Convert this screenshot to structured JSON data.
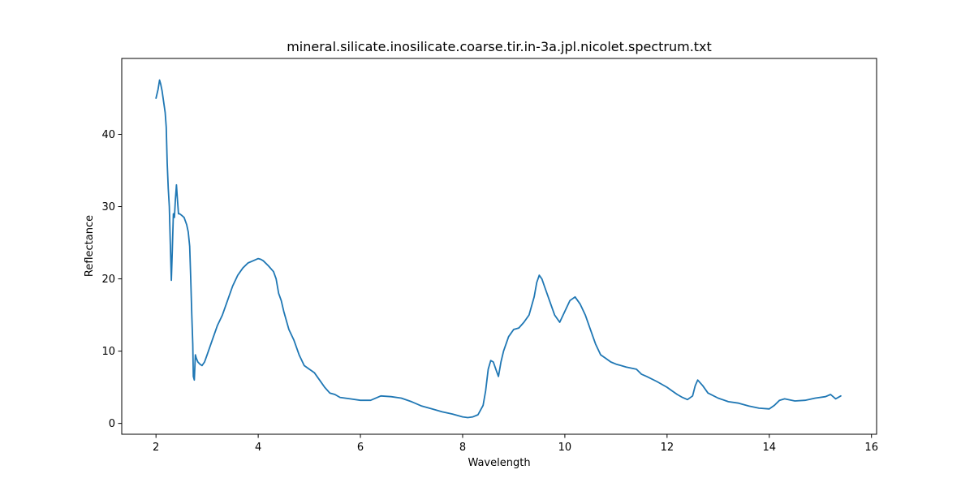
{
  "chart_data": {
    "type": "line",
    "title": "mineral.silicate.inosilicate.coarse.tir.in-3a.jpl.nicolet.spectrum.txt",
    "xlabel": "Wavelength",
    "ylabel": "Reflectance",
    "xlim": [
      1.33,
      16.1
    ],
    "ylim": [
      -1.5,
      50.5
    ],
    "xticks": [
      2,
      4,
      6,
      8,
      10,
      12,
      14,
      16
    ],
    "yticks": [
      0,
      10,
      20,
      30,
      40
    ],
    "grid": false,
    "line_color": "#1f77b4",
    "series": [
      {
        "x": [
          2.0,
          2.04,
          2.07,
          2.09,
          2.12,
          2.15,
          2.18,
          2.2,
          2.22,
          2.24,
          2.26,
          2.28,
          2.3,
          2.32,
          2.34,
          2.36,
          2.38,
          2.4,
          2.42,
          2.44,
          2.46,
          2.5,
          2.55,
          2.6,
          2.63,
          2.66,
          2.68,
          2.7,
          2.72,
          2.73,
          2.75,
          2.77,
          2.79,
          2.82,
          2.86,
          2.9,
          2.95,
          3.0,
          3.1,
          3.2,
          3.3,
          3.4,
          3.5,
          3.6,
          3.7,
          3.8,
          3.9,
          4.0,
          4.05,
          4.1,
          4.2,
          4.3,
          4.35,
          4.4,
          4.45,
          4.5,
          4.6,
          4.7,
          4.8,
          4.9,
          5.0,
          5.1,
          5.2,
          5.3,
          5.4,
          5.5,
          5.6,
          5.8,
          6.0,
          6.2,
          6.4,
          6.6,
          6.8,
          7.0,
          7.2,
          7.4,
          7.6,
          7.8,
          8.0,
          8.1,
          8.2,
          8.3,
          8.4,
          8.45,
          8.5,
          8.55,
          8.6,
          8.65,
          8.7,
          8.75,
          8.8,
          8.9,
          9.0,
          9.1,
          9.2,
          9.3,
          9.4,
          9.45,
          9.5,
          9.55,
          9.6,
          9.7,
          9.8,
          9.9,
          10.0,
          10.1,
          10.2,
          10.3,
          10.4,
          10.5,
          10.6,
          10.7,
          10.8,
          10.9,
          11.0,
          11.2,
          11.4,
          11.5,
          11.6,
          11.8,
          12.0,
          12.1,
          12.2,
          12.3,
          12.4,
          12.5,
          12.55,
          12.6,
          12.7,
          12.8,
          13.0,
          13.2,
          13.4,
          13.6,
          13.8,
          14.0,
          14.1,
          14.2,
          14.3,
          14.5,
          14.7,
          14.9,
          15.1,
          15.2,
          15.3,
          15.4
        ],
        "y": [
          45.0,
          46.2,
          47.5,
          47.0,
          46.0,
          44.5,
          43.0,
          41.0,
          36.0,
          32.5,
          30.0,
          25.0,
          19.8,
          24.0,
          29.0,
          28.5,
          31.0,
          33.0,
          31.0,
          29.0,
          29.0,
          28.8,
          28.5,
          27.5,
          26.5,
          24.5,
          20.0,
          15.0,
          11.0,
          6.5,
          6.0,
          9.5,
          9.0,
          8.5,
          8.2,
          8.0,
          8.5,
          9.5,
          11.5,
          13.5,
          15.0,
          17.0,
          19.0,
          20.5,
          21.5,
          22.2,
          22.5,
          22.8,
          22.7,
          22.5,
          21.8,
          21.0,
          20.0,
          18.0,
          17.0,
          15.5,
          13.0,
          11.5,
          9.5,
          8.0,
          7.5,
          7.0,
          6.0,
          5.0,
          4.2,
          4.0,
          3.6,
          3.4,
          3.2,
          3.2,
          3.8,
          3.7,
          3.5,
          3.0,
          2.4,
          2.0,
          1.6,
          1.3,
          0.9,
          0.8,
          0.9,
          1.2,
          2.5,
          4.5,
          7.5,
          8.7,
          8.5,
          7.5,
          6.5,
          8.5,
          10.0,
          12.0,
          13.0,
          13.2,
          14.0,
          15.0,
          17.5,
          19.5,
          20.5,
          20.0,
          19.0,
          17.0,
          15.0,
          14.0,
          15.5,
          17.0,
          17.5,
          16.5,
          15.0,
          13.0,
          11.0,
          9.5,
          9.0,
          8.5,
          8.2,
          7.8,
          7.5,
          6.8,
          6.5,
          5.8,
          5.0,
          4.5,
          4.0,
          3.6,
          3.3,
          3.8,
          5.2,
          6.0,
          5.2,
          4.2,
          3.5,
          3.0,
          2.8,
          2.4,
          2.1,
          2.0,
          2.5,
          3.2,
          3.4,
          3.1,
          3.2,
          3.5,
          3.7,
          4.0,
          3.4,
          3.8
        ]
      }
    ]
  }
}
